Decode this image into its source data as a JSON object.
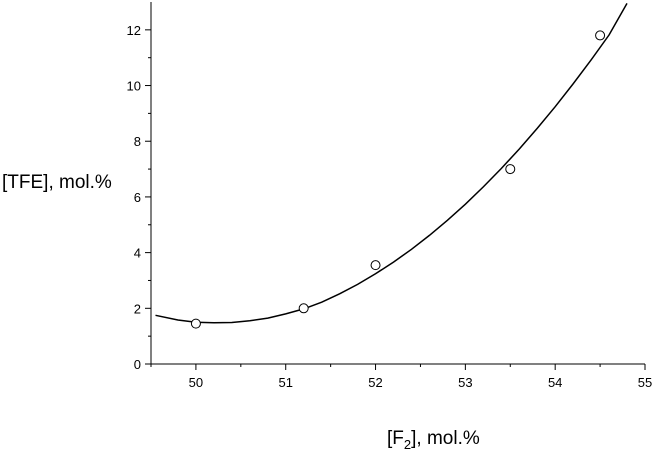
{
  "chart_data": {
    "type": "scatter",
    "title": "",
    "xlabel": "[F",
    "xlabel_sub": "2",
    "xlabel_suffix": "], mol.%",
    "ylabel": "[TFE], mol.%",
    "xlim": [
      49.5,
      55
    ],
    "ylim": [
      0,
      13
    ],
    "grid": false,
    "xticks": [
      50,
      51,
      52,
      53,
      54,
      55
    ],
    "yticks": [
      0,
      2,
      4,
      6,
      8,
      10,
      12
    ],
    "xtick_labels": [
      "50",
      "51",
      "52",
      "53",
      "54",
      "55"
    ],
    "ytick_labels": [
      "0",
      "2",
      "4",
      "6",
      "8",
      "10",
      "12"
    ],
    "series": [
      {
        "kind": "points",
        "marker": "open-circle",
        "x": [
          50.0,
          51.2,
          52.0,
          53.5,
          54.5
        ],
        "y": [
          1.45,
          2.0,
          3.55,
          7.0,
          11.8
        ]
      },
      {
        "kind": "fit-line",
        "x": [
          49.55,
          49.8,
          50.0,
          50.2,
          50.4,
          50.6,
          50.8,
          51.0,
          51.2,
          51.4,
          51.6,
          51.8,
          52.0,
          52.2,
          52.4,
          52.6,
          52.8,
          53.0,
          53.2,
          53.4,
          53.6,
          53.8,
          54.0,
          54.2,
          54.4,
          54.6,
          54.8
        ],
        "y": [
          1.75,
          1.58,
          1.5,
          1.48,
          1.49,
          1.55,
          1.65,
          1.8,
          1.98,
          2.22,
          2.52,
          2.86,
          3.24,
          3.66,
          4.12,
          4.62,
          5.16,
          5.74,
          6.36,
          7.02,
          7.72,
          8.46,
          9.24,
          10.06,
          10.92,
          11.82,
          12.95
        ]
      }
    ]
  }
}
